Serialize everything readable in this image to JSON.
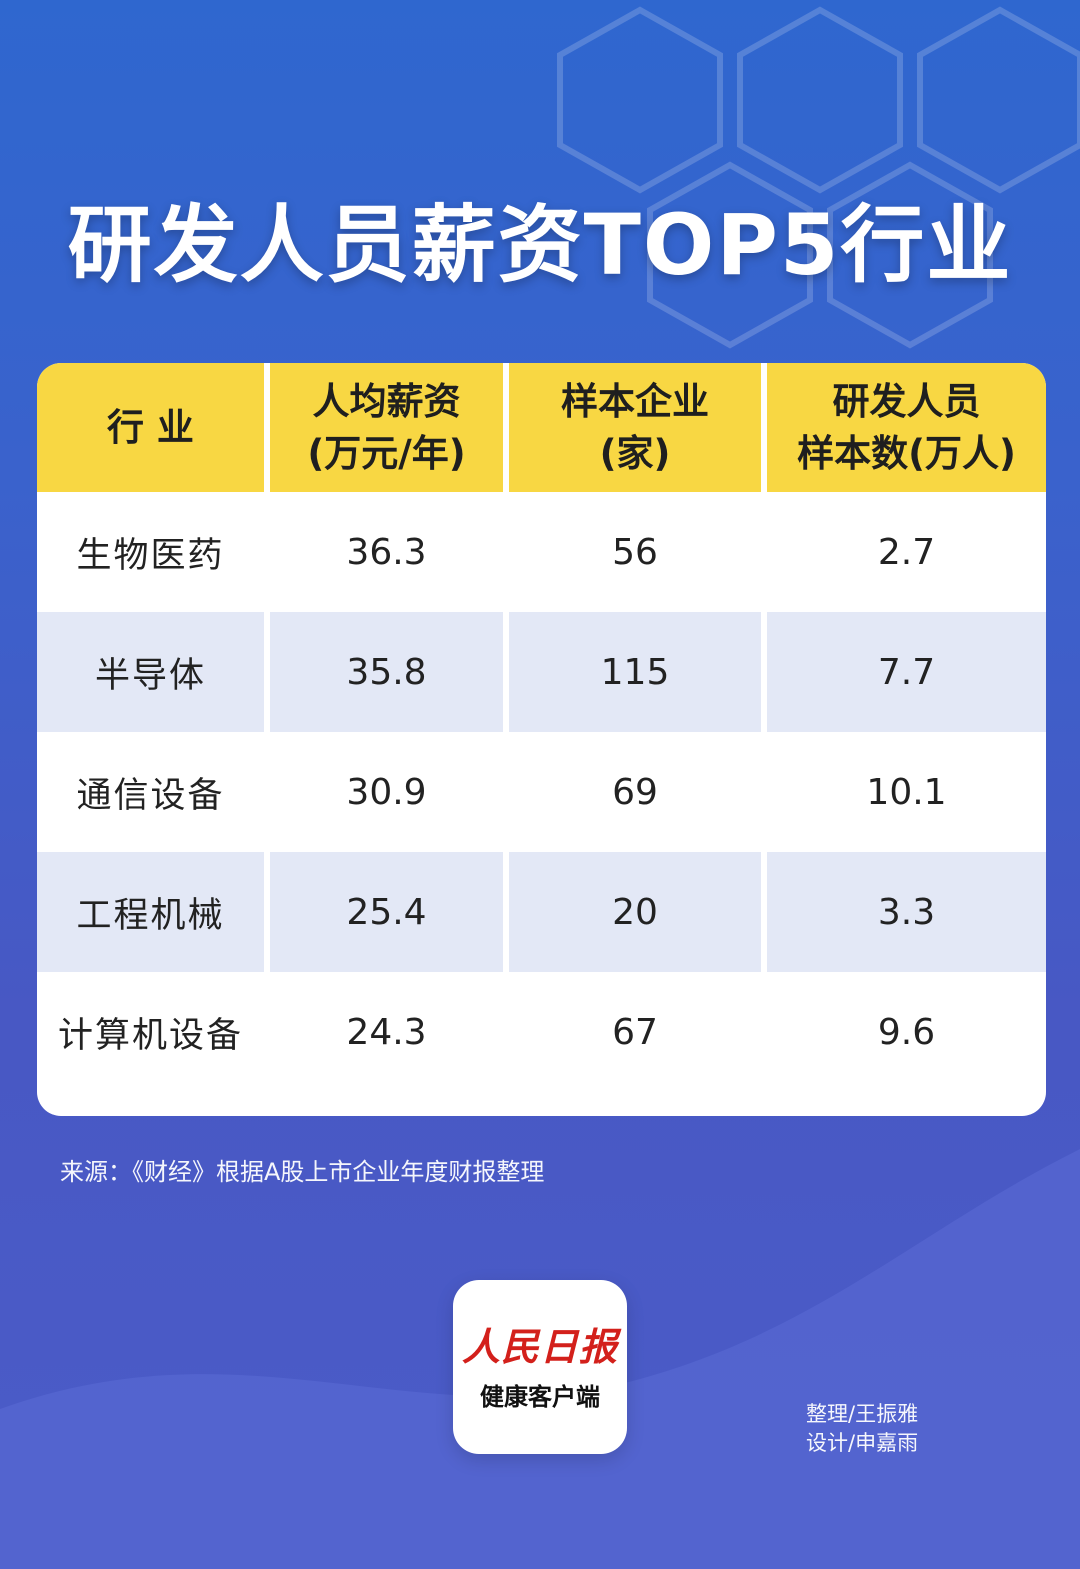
{
  "title": "研发人员薪资TOP5行业",
  "chart_data": {
    "type": "table",
    "columns": [
      {
        "line1": "行 业",
        "line2": ""
      },
      {
        "line1": "人均薪资",
        "line2": "(万元/年)"
      },
      {
        "line1": "样本企业",
        "line2": "(家)"
      },
      {
        "line1": "研发人员",
        "line2": "样本数(万人)"
      }
    ],
    "rows": [
      {
        "industry": "生物医药",
        "avg_salary": "36.3",
        "sample_companies": "56",
        "rd_staff": "2.7"
      },
      {
        "industry": "半导体",
        "avg_salary": "35.8",
        "sample_companies": "115",
        "rd_staff": "7.7"
      },
      {
        "industry": "通信设备",
        "avg_salary": "30.9",
        "sample_companies": "69",
        "rd_staff": "10.1"
      },
      {
        "industry": "工程机械",
        "avg_salary": "25.4",
        "sample_companies": "20",
        "rd_staff": "3.3"
      },
      {
        "industry": "计算机设备",
        "avg_salary": "24.3",
        "sample_companies": "67",
        "rd_staff": "9.6"
      }
    ]
  },
  "source": "来源：《财经》根据A股上市企业年度财报整理",
  "logo": {
    "name": "人民日报",
    "sub": "健康客户端"
  },
  "credits": {
    "editor": "整理/王振雅",
    "designer": "设计/申嘉雨"
  },
  "colors": {
    "header": "#f8d743",
    "alt_row": "#e3e8f6",
    "background": "#3a62cc"
  }
}
